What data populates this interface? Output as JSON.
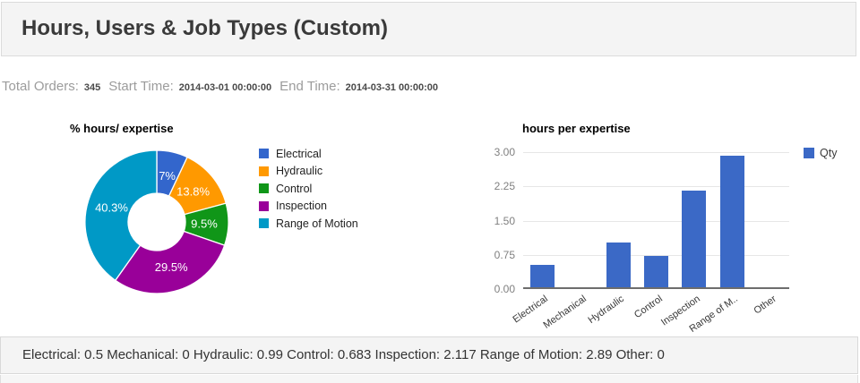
{
  "header": {
    "title": "Hours, Users & Job Types (Custom)"
  },
  "info": {
    "total_orders_label": "Total Orders:",
    "total_orders_value": "345",
    "start_time_label": "Start Time:",
    "start_time_value": "2014-03-01 00:00:00",
    "end_time_label": "End Time:",
    "end_time_value": "2014-03-31 00:00:00"
  },
  "chart_data": [
    {
      "type": "pie",
      "title": "% hours/ expertise",
      "donut": true,
      "labels": [
        "Electrical",
        "Hydraulic",
        "Control",
        "Inspection",
        "Range of Motion"
      ],
      "values_pct": [
        7,
        13.8,
        9.5,
        29.5,
        40.3
      ],
      "slice_label_texts": [
        "7%",
        "13.8%",
        "9.5%",
        "29.5%",
        "40.3%"
      ],
      "colors": [
        "#3366cc",
        "#ff9900",
        "#109618",
        "#990099",
        "#0099c6"
      ],
      "legend_position": "right"
    },
    {
      "type": "bar",
      "title": "hours per expertise",
      "categories": [
        "Electrical",
        "Mechanical",
        "Hydraulic",
        "Control",
        "Inspection",
        "Range of M..",
        "Other"
      ],
      "series": [
        {
          "name": "Qty",
          "values": [
            0.5,
            0,
            0.99,
            0.683,
            2.117,
            2.89,
            0
          ],
          "color": "#3b69c6"
        }
      ],
      "yticks": [
        "3.00",
        "2.25",
        "1.50",
        "0.75",
        "0.00"
      ],
      "ylim": [
        0,
        3
      ],
      "grid": true,
      "legend_position": "right"
    }
  ],
  "summary": {
    "text": "Electrical: 0.5 Mechanical: 0 Hydraulic: 0.99 Control: 0.683 Inspection: 2.117 Range of Motion: 2.89 Other: 0"
  }
}
